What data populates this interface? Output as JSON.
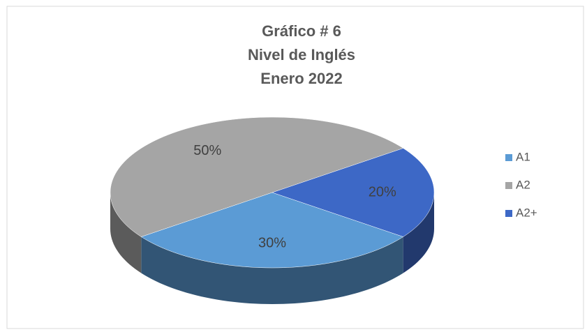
{
  "chart_data": {
    "type": "pie3d",
    "title": [
      "Gráfico # 6",
      "Nivel de Inglés",
      "Enero 2022"
    ],
    "categories": [
      "A1",
      "A2",
      "A2+"
    ],
    "values": [
      30,
      50,
      20
    ],
    "value_labels": [
      "30%",
      "50%",
      "20%"
    ],
    "colors": [
      "#5b9bd5",
      "#a5a5a5",
      "#3d68c6"
    ],
    "legend": "right"
  }
}
